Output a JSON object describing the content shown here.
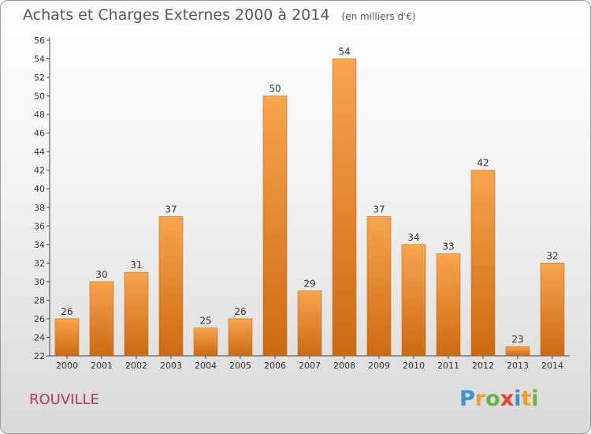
{
  "title": "Achats et Charges Externes 2000 à 2014",
  "unit": "(en milliers d'€)",
  "place": "ROUVILLE",
  "logo": {
    "text": "Proxiti",
    "letters": [
      "P",
      "r",
      "o",
      "x",
      "i",
      "t",
      "i"
    ],
    "colors": [
      "#3f8fd2",
      "#f0a020",
      "#6ab344",
      "#e8402c",
      "#3f8fd2",
      "#f0a020",
      "#6ab344"
    ]
  },
  "colors": {
    "bar_light": "#f7a54e",
    "bar_dark": "#cc6a12",
    "place": "#b5395d"
  },
  "chart_data": {
    "type": "bar",
    "categories": [
      "2000",
      "2001",
      "2002",
      "2003",
      "2004",
      "2005",
      "2006",
      "2007",
      "2008",
      "2009",
      "2010",
      "2011",
      "2012",
      "2013",
      "2014"
    ],
    "values": [
      26,
      30,
      31,
      37,
      25,
      26,
      50,
      29,
      54,
      37,
      34,
      33,
      42,
      23,
      32
    ],
    "title": "Achats et Charges Externes 2000 à 2014",
    "xlabel": "",
    "ylabel": "",
    "ylim": [
      22,
      56
    ],
    "yticks": [
      22,
      24,
      26,
      28,
      30,
      32,
      34,
      36,
      38,
      40,
      42,
      44,
      46,
      48,
      50,
      52,
      54,
      56
    ],
    "grid": false,
    "data_labels": true
  }
}
